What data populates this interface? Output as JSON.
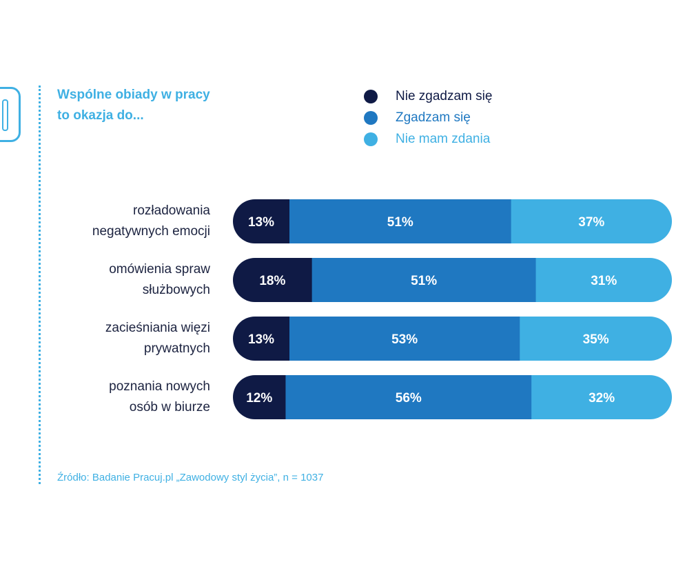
{
  "title_line1": "Wspólne obiady w pracy",
  "title_line2": "to okazja do...",
  "source": "Źródło: Badanie Pracuj.pl „Zawodowy styl życia”, n = 1037",
  "colors": {
    "nie_zgadzam": "#0f1a45",
    "zgadzam": "#1f78c1",
    "nie_mam": "#3fb0e3",
    "row_label": "#1c2340",
    "accent": "#3fb0e3"
  },
  "chart_data": {
    "type": "bar",
    "orientation": "horizontal",
    "stacked": true,
    "title": "Wspólne obiady w pracy to okazja do...",
    "categories": [
      [
        "rozładowania",
        "negatywnych emocji"
      ],
      [
        "omówienia spraw",
        "służbowych"
      ],
      [
        "zacieśniania więzi",
        "prywatnych"
      ],
      [
        "poznania nowych",
        "osób w biurze"
      ]
    ],
    "series": [
      {
        "name": "Nie zgadzam się",
        "values": [
          13,
          18,
          13,
          12
        ]
      },
      {
        "name": "Zgadzam się",
        "values": [
          51,
          51,
          53,
          56
        ]
      },
      {
        "name": "Nie mam zdania",
        "values": [
          37,
          31,
          35,
          32
        ]
      }
    ],
    "value_suffix": "%",
    "legend_position": "top-right",
    "grid": false
  }
}
